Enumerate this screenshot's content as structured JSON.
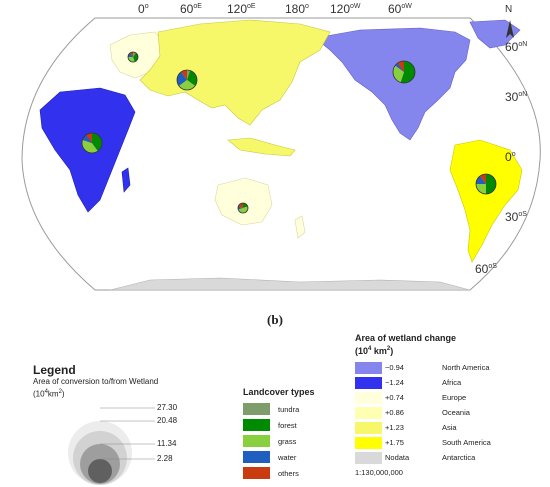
{
  "caption": "(b)",
  "map": {
    "top_ticks": [
      "0",
      "60",
      "120",
      "180",
      "120",
      "60"
    ],
    "top_tick_units": [
      "o",
      "oE",
      "oE",
      "o",
      "oW",
      "oW"
    ],
    "right_ticks": [
      "60",
      "30",
      "0",
      "30",
      "60"
    ],
    "right_tick_units": [
      "oN",
      "oN",
      "o",
      "oS",
      "oS"
    ],
    "north_label": "N",
    "colors": {
      "ocean": "#ffffff",
      "north_america": "#8585ee",
      "africa": "#3232ee",
      "europe": "#ffffdc",
      "oceania": "#ffffb2",
      "asia": "#f7f76a",
      "south_america": "#ffff00",
      "nodata": "#d9d9d9"
    }
  },
  "legend": {
    "title": "Legend",
    "subtitle_line1": "Area of conversion to/from Wetland",
    "subtitle_line2_prefix": "(10",
    "subtitle_line2_exp": "4",
    "subtitle_line2_unit": "km",
    "subtitle_line2_exp2": "2",
    "subtitle_line2_suffix": ")",
    "circle_values": [
      "27.30",
      "20.48",
      "11.34",
      "2.28"
    ]
  },
  "landcover": {
    "title": "Landcover types",
    "items": [
      {
        "label": "tundra",
        "color": "#7f9d6b"
      },
      {
        "label": "forest",
        "color": "#008a00"
      },
      {
        "label": "grass",
        "color": "#88d040"
      },
      {
        "label": "water",
        "color": "#1f5fbf"
      },
      {
        "label": "others",
        "color": "#c83c10"
      }
    ]
  },
  "wetland_change": {
    "title_line1": "Area of wetland change",
    "title_line2_prefix": "(10",
    "title_line2_exp": "4",
    "title_line2_unit": " km",
    "title_line2_exp2": "2",
    "title_line2_suffix": ")",
    "items": [
      {
        "value": "−0.94",
        "region": "North America",
        "color": "#8585ee"
      },
      {
        "value": "−1.24",
        "region": "Africa",
        "color": "#3232ee"
      },
      {
        "value": "+0.74",
        "region": "Europe",
        "color": "#ffffdc"
      },
      {
        "value": "+0.86",
        "region": "Oceania",
        "color": "#ffffb2"
      },
      {
        "value": "+1.23",
        "region": "Asia",
        "color": "#f7f76a"
      },
      {
        "value": "+1.75",
        "region": "South America",
        "color": "#ffff00"
      },
      {
        "value": "Nodata",
        "region": "Antarctica",
        "color": "#d9d9d9"
      }
    ],
    "scale": "1:130,000,000"
  },
  "pies": [
    {
      "region": "Europe",
      "values": [
        0.1,
        0.35,
        0.3,
        0.15,
        0.1
      ]
    },
    {
      "region": "Asia",
      "values": [
        0.05,
        0.3,
        0.3,
        0.25,
        0.1
      ]
    },
    {
      "region": "North America",
      "values": [
        0.0,
        0.55,
        0.3,
        0.05,
        0.1
      ]
    },
    {
      "region": "Africa",
      "values": [
        0.0,
        0.4,
        0.4,
        0.1,
        0.1
      ]
    },
    {
      "region": "South America",
      "values": [
        0.0,
        0.5,
        0.25,
        0.15,
        0.1
      ]
    },
    {
      "region": "Oceania",
      "values": [
        0.0,
        0.2,
        0.5,
        0.1,
        0.2
      ]
    }
  ]
}
